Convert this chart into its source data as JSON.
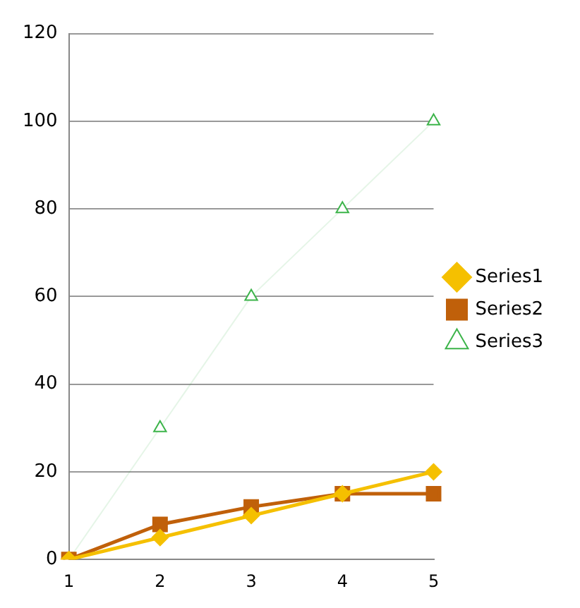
{
  "chart_data": {
    "type": "line",
    "categories": [
      "1",
      "2",
      "3",
      "4",
      "5"
    ],
    "series": [
      {
        "name": "Series1",
        "color": "#f5c000",
        "values": [
          0,
          5,
          10,
          15,
          20
        ],
        "marker": "diamond"
      },
      {
        "name": "Series2",
        "color": "#c0600a",
        "values": [
          0,
          8,
          12,
          15,
          15
        ],
        "marker": "square"
      },
      {
        "name": "Series3",
        "color": "#3cb44a",
        "values": [
          0,
          30,
          60,
          80,
          100
        ],
        "marker": "triangle"
      }
    ],
    "ylim": [
      0,
      120
    ],
    "yticks": [
      0,
      20,
      40,
      60,
      80,
      100,
      120
    ],
    "grid": "y",
    "legend": "right"
  }
}
